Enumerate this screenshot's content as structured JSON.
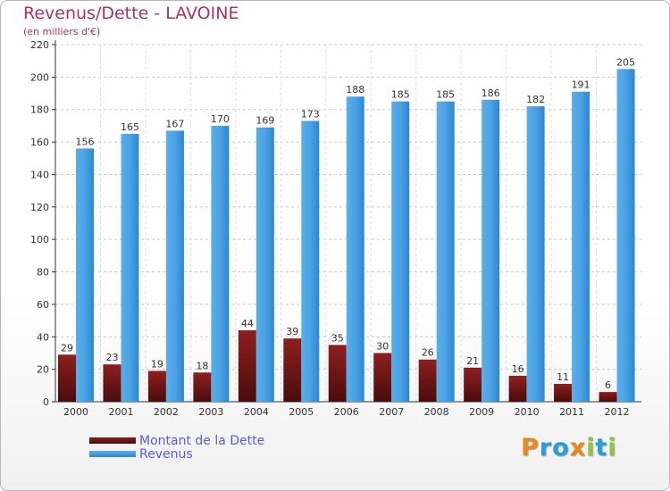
{
  "chart_data": {
    "type": "bar",
    "title": "Revenus/Dette - LAVOINE",
    "subtitle": "(en milliers d'€)",
    "categories": [
      "2000",
      "2001",
      "2002",
      "2003",
      "2004",
      "2005",
      "2006",
      "2007",
      "2008",
      "2009",
      "2010",
      "2011",
      "2012"
    ],
    "series": [
      {
        "name": "Montant de la Dette",
        "values": [
          29,
          23,
          19,
          18,
          44,
          39,
          35,
          30,
          26,
          21,
          16,
          11,
          6
        ],
        "color": "#7a1a1a"
      },
      {
        "name": "Revenus",
        "values": [
          156,
          165,
          167,
          170,
          169,
          173,
          188,
          185,
          185,
          186,
          182,
          191,
          205
        ],
        "color": "#3a93dc"
      }
    ],
    "ylim": [
      0,
      220
    ],
    "yticks": [
      0,
      20,
      40,
      60,
      80,
      100,
      120,
      140,
      160,
      180,
      200,
      220
    ],
    "grid": true,
    "legend": "bottom-left"
  },
  "logo": {
    "letters": [
      {
        "ch": "P",
        "color": "#e8891c"
      },
      {
        "ch": "r",
        "color": "#2a9fd6"
      },
      {
        "ch": "o",
        "color": "#2a9fd6"
      },
      {
        "ch": "x",
        "color": "#e8891c"
      },
      {
        "ch": "i",
        "color": "#8cc63f"
      },
      {
        "ch": "t",
        "color": "#2a9fd6"
      },
      {
        "ch": "i",
        "color": "#8cc63f"
      }
    ]
  }
}
